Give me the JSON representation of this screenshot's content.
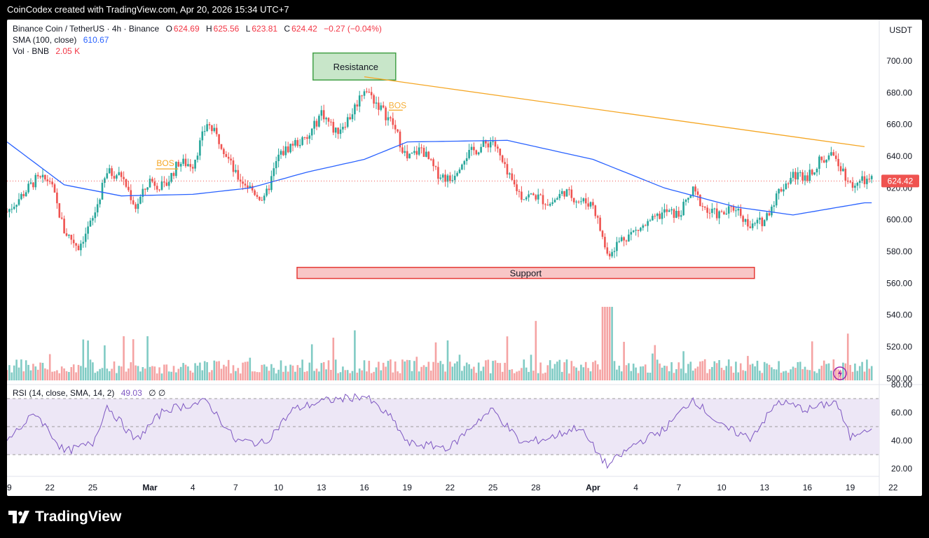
{
  "header": {
    "text": "CoinCodex created with TradingView.com, Apr 20, 2026 15:34 UTC+7"
  },
  "legend": {
    "symbol": "Binance Coin / TetherUS · 4h · Binance",
    "open_label": "O",
    "open": "624.69",
    "high_label": "H",
    "high": "625.56",
    "low_label": "L",
    "low": "623.81",
    "close_label": "C",
    "close": "624.42",
    "change": "−0.27 (−0.04%)",
    "sma_label": "SMA (100, close)",
    "sma_value": "610.67",
    "vol_label": "Vol · BNB",
    "vol_value": "2.05 K",
    "rsi_label": "RSI (14, close, SMA, 14, 2)",
    "rsi_value": "49.03",
    "rsi_extra": "∅ ∅"
  },
  "axis": {
    "currency": "USDT",
    "price_ticks": [
      "700.00",
      "680.00",
      "660.00",
      "640.00",
      "620.00",
      "600.00",
      "580.00",
      "560.00",
      "540.00",
      "520.00",
      "500.00"
    ],
    "rsi_ticks": [
      "80.00",
      "60.00",
      "40.00",
      "20.00"
    ],
    "date_ticks": [
      "19",
      "22",
      "25",
      "Mar",
      "4",
      "7",
      "10",
      "13",
      "16",
      "19",
      "22",
      "25",
      "28",
      "Apr",
      "4",
      "7",
      "10",
      "13",
      "16",
      "19",
      "22"
    ],
    "last_price": "624.42"
  },
  "annotations": {
    "resistance": "Resistance",
    "support": "Support",
    "bos1": "BOS",
    "bos2": "BOS"
  },
  "footer": {
    "brand": "TradingView"
  },
  "colors": {
    "up": "#26a69a",
    "down": "#ef5350",
    "sma": "#2962ff",
    "trend": "#f5a623",
    "rsi": "#7e57c2",
    "rsi_band": "#ede7f6"
  },
  "chart_data": {
    "type": "candlestick",
    "timeframe": "4h",
    "x_start": "Feb 19, 2026",
    "x_end": "Apr 20, 2026",
    "ylim": [
      555,
      705
    ],
    "close_path_approx": [
      {
        "date": "Feb 19",
        "price": 605
      },
      {
        "date": "Feb 21",
        "price": 625
      },
      {
        "date": "Feb 22",
        "price": 625
      },
      {
        "date": "Feb 23",
        "price": 593
      },
      {
        "date": "Feb 24",
        "price": 583
      },
      {
        "date": "Feb 25",
        "price": 600
      },
      {
        "date": "Feb 26",
        "price": 630
      },
      {
        "date": "Feb 27",
        "price": 628
      },
      {
        "date": "Feb 28",
        "price": 608
      },
      {
        "date": "Mar 1",
        "price": 625
      },
      {
        "date": "Mar 2",
        "price": 620
      },
      {
        "date": "Mar 3",
        "price": 636
      },
      {
        "date": "Mar 4",
        "price": 635
      },
      {
        "date": "Mar 5",
        "price": 661
      },
      {
        "date": "Mar 6",
        "price": 648
      },
      {
        "date": "Mar 7",
        "price": 628
      },
      {
        "date": "Mar 8",
        "price": 620
      },
      {
        "date": "Mar 9",
        "price": 612
      },
      {
        "date": "Mar 10",
        "price": 640
      },
      {
        "date": "Mar 11",
        "price": 648
      },
      {
        "date": "Mar 12",
        "price": 650
      },
      {
        "date": "Mar 13",
        "price": 668
      },
      {
        "date": "Mar 14",
        "price": 655
      },
      {
        "date": "Mar 15",
        "price": 665
      },
      {
        "date": "Mar 16",
        "price": 683
      },
      {
        "date": "Mar 17",
        "price": 672
      },
      {
        "date": "Mar 18",
        "price": 660
      },
      {
        "date": "Mar 19",
        "price": 638
      },
      {
        "date": "Mar 20",
        "price": 645
      },
      {
        "date": "Mar 21",
        "price": 630
      },
      {
        "date": "Mar 22",
        "price": 625
      },
      {
        "date": "Mar 23",
        "price": 640
      },
      {
        "date": "Mar 24",
        "price": 645
      },
      {
        "date": "Mar 25",
        "price": 650
      },
      {
        "date": "Mar 26",
        "price": 628
      },
      {
        "date": "Mar 27",
        "price": 615
      },
      {
        "date": "Mar 28",
        "price": 615
      },
      {
        "date": "Mar 29",
        "price": 610
      },
      {
        "date": "Mar 30",
        "price": 618
      },
      {
        "date": "Mar 31",
        "price": 612
      },
      {
        "date": "Apr 1",
        "price": 610
      },
      {
        "date": "Apr 2",
        "price": 578
      },
      {
        "date": "Apr 3",
        "price": 588
      },
      {
        "date": "Apr 4",
        "price": 593
      },
      {
        "date": "Apr 5",
        "price": 598
      },
      {
        "date": "Apr 6",
        "price": 605
      },
      {
        "date": "Apr 7",
        "price": 603
      },
      {
        "date": "Apr 8",
        "price": 618
      },
      {
        "date": "Apr 9",
        "price": 605
      },
      {
        "date": "Apr 10",
        "price": 603
      },
      {
        "date": "Apr 11",
        "price": 608
      },
      {
        "date": "Apr 12",
        "price": 595
      },
      {
        "date": "Apr 13",
        "price": 600
      },
      {
        "date": "Apr 14",
        "price": 618
      },
      {
        "date": "Apr 15",
        "price": 628
      },
      {
        "date": "Apr 16",
        "price": 628
      },
      {
        "date": "Apr 17",
        "price": 638
      },
      {
        "date": "Apr 18",
        "price": 640
      },
      {
        "date": "Apr 19",
        "price": 622
      },
      {
        "date": "Apr 20",
        "price": 624.42
      }
    ],
    "sma100_approx": [
      {
        "date": "Feb 19",
        "price": 649
      },
      {
        "date": "Feb 23",
        "price": 622
      },
      {
        "date": "Feb 27",
        "price": 615
      },
      {
        "date": "Mar 4",
        "price": 616
      },
      {
        "date": "Mar 8",
        "price": 620
      },
      {
        "date": "Mar 12",
        "price": 630
      },
      {
        "date": "Mar 16",
        "price": 638
      },
      {
        "date": "Mar 19",
        "price": 649
      },
      {
        "date": "Mar 26",
        "price": 650
      },
      {
        "date": "Apr 1",
        "price": 638
      },
      {
        "date": "Apr 6",
        "price": 620
      },
      {
        "date": "Apr 11",
        "price": 608
      },
      {
        "date": "Apr 15",
        "price": 603
      },
      {
        "date": "Apr 20",
        "price": 610.67
      }
    ],
    "trendline": {
      "from": {
        "date": "Mar 16",
        "price": 690
      },
      "to": {
        "date": "Apr 20",
        "price": 646
      }
    },
    "resistance_zone": {
      "price_low": 688,
      "price_high": 705,
      "date_start": "Mar 13",
      "date_end": "Mar 18"
    },
    "support_zone": {
      "price_low": 563,
      "price_high": 570,
      "date_start": "Mar 11",
      "date_end": "Apr 12"
    },
    "volume_axis_ylim": [
      500,
      555
    ],
    "rsi": {
      "ylim": [
        15,
        80
      ],
      "upper_band": 70,
      "lower_band": 30,
      "mid": 50,
      "path_approx": [
        {
          "date": "Feb 19",
          "value": 40
        },
        {
          "date": "Feb 21",
          "value": 60
        },
        {
          "date": "Feb 23",
          "value": 32
        },
        {
          "date": "Feb 25",
          "value": 38
        },
        {
          "date": "Feb 26",
          "value": 65
        },
        {
          "date": "Feb 28",
          "value": 40
        },
        {
          "date": "Mar 2",
          "value": 62
        },
        {
          "date": "Mar 5",
          "value": 68
        },
        {
          "date": "Mar 7",
          "value": 40
        },
        {
          "date": "Mar 9",
          "value": 38
        },
        {
          "date": "Mar 11",
          "value": 62
        },
        {
          "date": "Mar 13",
          "value": 68
        },
        {
          "date": "Mar 16",
          "value": 72
        },
        {
          "date": "Mar 18",
          "value": 55
        },
        {
          "date": "Mar 19",
          "value": 38
        },
        {
          "date": "Mar 22",
          "value": 35
        },
        {
          "date": "Mar 24",
          "value": 55
        },
        {
          "date": "Mar 25",
          "value": 62
        },
        {
          "date": "Mar 27",
          "value": 38
        },
        {
          "date": "Mar 29",
          "value": 42
        },
        {
          "date": "Mar 31",
          "value": 50
        },
        {
          "date": "Apr 2",
          "value": 22
        },
        {
          "date": "Apr 4",
          "value": 38
        },
        {
          "date": "Apr 6",
          "value": 48
        },
        {
          "date": "Apr 8",
          "value": 70
        },
        {
          "date": "Apr 10",
          "value": 50
        },
        {
          "date": "Apr 12",
          "value": 42
        },
        {
          "date": "Apr 14",
          "value": 68
        },
        {
          "date": "Apr 16",
          "value": 62
        },
        {
          "date": "Apr 18",
          "value": 68
        },
        {
          "date": "Apr 19",
          "value": 42
        },
        {
          "date": "Apr 20",
          "value": 49.03
        }
      ]
    }
  }
}
